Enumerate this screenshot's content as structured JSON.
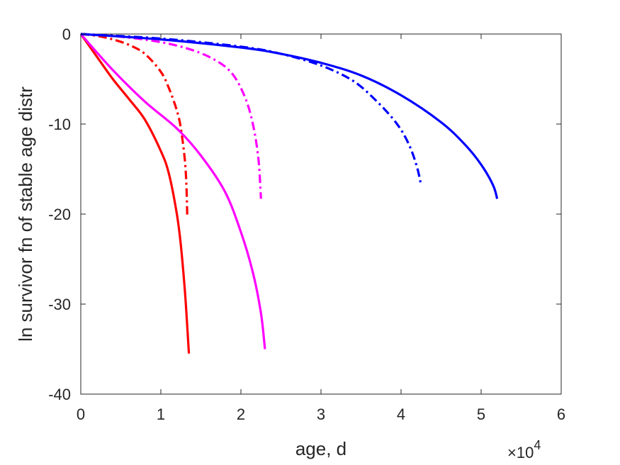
{
  "chart_data": {
    "type": "line",
    "title": "",
    "xlabel": "age, d",
    "ylabel": "ln survivor fn of stable age distr",
    "x_exponent_label": "×10",
    "x_exponent_power": "4",
    "xlim": [
      0,
      60000
    ],
    "ylim": [
      -40,
      0
    ],
    "xticks": [
      0,
      10000,
      20000,
      30000,
      40000,
      50000,
      60000
    ],
    "xtick_labels": [
      "0",
      "1",
      "2",
      "3",
      "4",
      "5",
      "6"
    ],
    "yticks": [
      0,
      -10,
      -20,
      -30,
      -40
    ],
    "ytick_labels": [
      "0",
      "-10",
      "-20",
      "-30",
      "-40"
    ],
    "grid": false,
    "series": [
      {
        "color": "#ff0000",
        "style": "solid",
        "x": [
          0,
          2000,
          4000,
          6000,
          8000,
          10000,
          11000,
          12000,
          12500,
          13000,
          13300,
          13500
        ],
        "y": [
          0,
          -2.5,
          -5,
          -7.2,
          -9.5,
          -13,
          -15.5,
          -20,
          -23.5,
          -28.5,
          -32.5,
          -35.5
        ]
      },
      {
        "color": "#ff0000",
        "style": "dashdot",
        "x": [
          0,
          2000,
          4000,
          6000,
          8000,
          10000,
          11000,
          12000,
          12500,
          13000,
          13200,
          13300
        ],
        "y": [
          0,
          -0.2,
          -0.6,
          -1.2,
          -2.2,
          -4.2,
          -6,
          -8.5,
          -10.5,
          -14,
          -17,
          -20.3
        ]
      },
      {
        "color": "#ff00ff",
        "style": "solid",
        "x": [
          0,
          4000,
          8000,
          12000,
          15000,
          18000,
          20000,
          21500,
          22500,
          23000
        ],
        "y": [
          0,
          -4,
          -7.5,
          -10.5,
          -13.5,
          -17.5,
          -22,
          -26.5,
          -31,
          -35
        ]
      },
      {
        "color": "#ff00ff",
        "style": "dashdot",
        "x": [
          0,
          5000,
          10000,
          14000,
          17000,
          19000,
          20500,
          21500,
          22200,
          22500
        ],
        "y": [
          0,
          -0.3,
          -0.9,
          -1.8,
          -3,
          -4.5,
          -7,
          -10,
          -14,
          -18.3
        ]
      },
      {
        "color": "#0000ff",
        "style": "solid",
        "x": [
          0,
          10000,
          20000,
          25000,
          30000,
          35000,
          40000,
          45000,
          48000,
          50000,
          51500,
          52000
        ],
        "y": [
          0,
          -0.6,
          -1.5,
          -2.2,
          -3.2,
          -4.6,
          -6.8,
          -9.8,
          -12.3,
          -14.5,
          -16.8,
          -18.3
        ]
      },
      {
        "color": "#0000ff",
        "style": "dashdot",
        "x": [
          0,
          10000,
          20000,
          25000,
          30000,
          34000,
          37000,
          39500,
          41000,
          42000,
          42500
        ],
        "y": [
          0,
          -0.5,
          -1.4,
          -2.2,
          -3.5,
          -5.2,
          -7.5,
          -10,
          -12.3,
          -14.8,
          -16.8
        ]
      }
    ]
  }
}
